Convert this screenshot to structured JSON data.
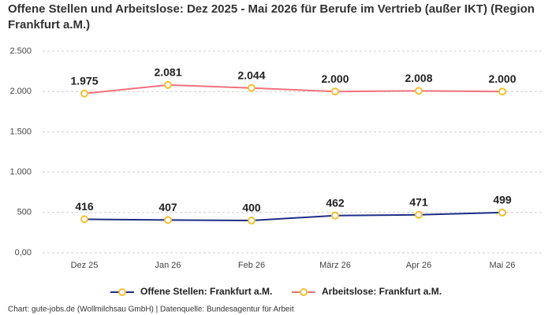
{
  "chart_data": {
    "type": "line",
    "title": "Offene Stellen und Arbeitslose: Dez 2025 - Mai 2026 für Berufe im Vertrieb (außer IKT) (Region Frankfurt a.M.)",
    "categories": [
      "Dez 25",
      "Jan 26",
      "Feb 26",
      "März 26",
      "Apr 26",
      "Mai 26"
    ],
    "series": [
      {
        "name": "Offene Stellen: Frankfurt a.M.",
        "color": "#1f2d86",
        "values": [
          416,
          407,
          400,
          462,
          471,
          499
        ]
      },
      {
        "name": "Arbeitslose: Frankfurt a.M.",
        "color": "#f0717f",
        "values": [
          1975,
          2081,
          2044,
          2000,
          2008,
          2000
        ],
        "value_labels": [
          "1.975",
          "2.081",
          "2.044",
          "2.000",
          "2.008",
          "2.000"
        ]
      }
    ],
    "marker_color": "#f2c12e",
    "ylim": [
      0,
      2500
    ],
    "yticks": [
      {
        "value": 0,
        "label": "0,00"
      },
      500,
      {
        "value": 1000,
        "label": "1.000"
      },
      {
        "value": 1500,
        "label": "1.500"
      },
      {
        "value": 2000,
        "label": "2.000"
      },
      {
        "value": 2500,
        "label": "2.500"
      }
    ],
    "grid": true,
    "legend": "bottom",
    "source": "Chart: gute-jobs.de (Wollmilchsau GmbH) | Datenquelle: Bundesagentur für Arbeit"
  }
}
